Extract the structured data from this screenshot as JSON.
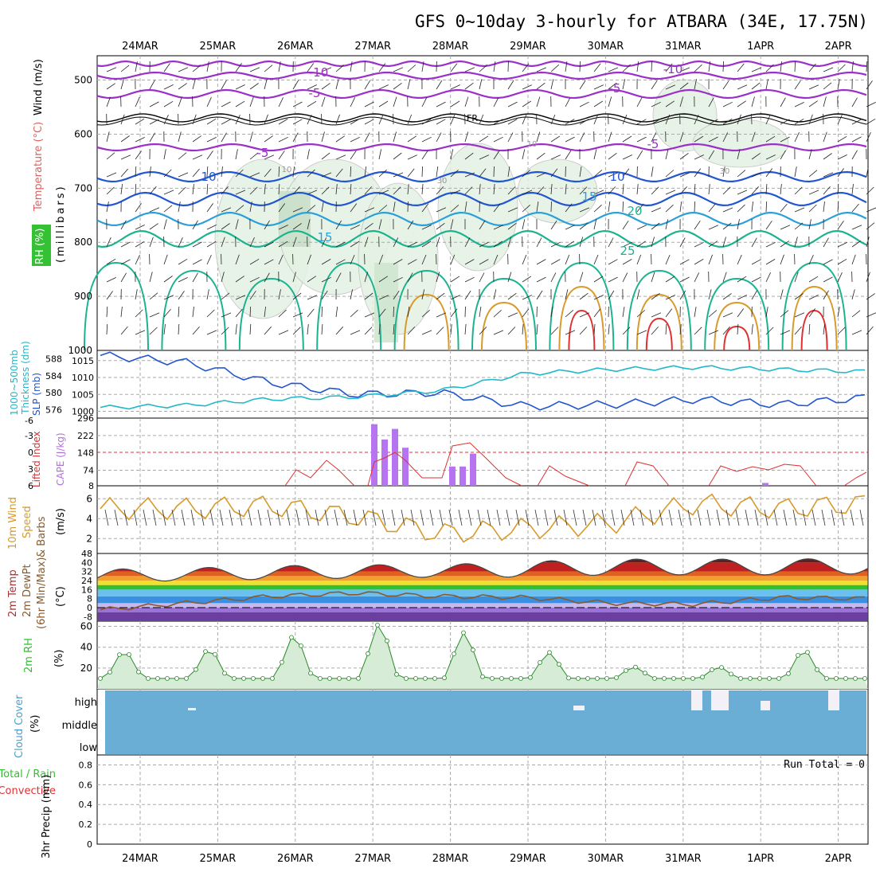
{
  "title": "GFS 0~10day 3-hourly for ATBARA (34E, 17.75N)",
  "date_labels": [
    "24MAR",
    "25MAR",
    "26MAR",
    "27MAR",
    "28MAR",
    "29MAR",
    "30MAR",
    "31MAR",
    "1APR",
    "2APR"
  ],
  "colors": {
    "purple": "#9b30c8",
    "blue": "#2255d0",
    "cyan": "#22b8c8",
    "sky": "#2a9fd8",
    "teal": "#1bb38f",
    "orange": "#d89a2a",
    "red": "#e03030",
    "green": "#30c030",
    "cloud": "#6aaed6",
    "grid": "#9a9a9a"
  },
  "panels": {
    "upper_air": {
      "axis_label_main": "Wind (m/s)",
      "axis_label_temp": "Temperature (°C)",
      "axis_label_rh": "RH (%)",
      "axis_label_unit": "(millibars)",
      "y_ticks": [
        "500",
        "600",
        "700",
        "800",
        "900",
        "1000"
      ],
      "isotherm_labels": [
        "-10",
        "-10",
        "-5",
        "-5",
        "-5",
        "-5",
        "10",
        "10",
        "15",
        "15",
        "20",
        "25"
      ],
      "freezing_label": "FR",
      "rh_labels": [
        "10",
        "30",
        "10",
        "30"
      ]
    },
    "slp": {
      "axis_label_left": "1000~500mb",
      "axis_label_left2": "Thickness (dm)",
      "axis_label_right": "SLP (mb)",
      "thick_ticks": [
        "588",
        "584",
        "580",
        "576"
      ],
      "slp_ticks": [
        "1015",
        "1010",
        "1005",
        "1000"
      ]
    },
    "cape": {
      "axis_label_li": "Lifted Index",
      "axis_label_cape": "CAPE (J/kg)",
      "li_ticks": [
        "-6",
        "-3",
        "0",
        "3",
        "6"
      ],
      "cape_ticks": [
        "296",
        "222",
        "148",
        "74",
        "8"
      ]
    },
    "wind10m": {
      "axis_label_1": "10m Wind",
      "axis_label_2": "Speed",
      "axis_label_3": "& Barbs",
      "axis_unit": "(m/s)",
      "y_ticks": [
        "6",
        "4",
        "2"
      ]
    },
    "temp2m": {
      "axis_label_1": "2m Temp",
      "axis_label_2": "2m DewPt",
      "axis_label_3": "(6hr Min/Max)",
      "axis_unit": "(°C)",
      "y_ticks": [
        "48",
        "40",
        "32",
        "24",
        "16",
        "8",
        "0",
        "-8"
      ]
    },
    "rh2m": {
      "axis_label": "2m RH",
      "axis_unit": "(%)",
      "y_ticks": [
        "60",
        "40",
        "20"
      ]
    },
    "cloud": {
      "axis_label": "Cloud Cover",
      "axis_unit": "(%)",
      "levels": [
        "high",
        "middle",
        "low"
      ]
    },
    "precip": {
      "axis_label_1": "Total / Rain",
      "axis_label_2": "Convective",
      "axis_label_3": "3hr Precip (mm)",
      "y_ticks": [
        "0.8",
        "0.6",
        "0.4",
        "0.2",
        "0"
      ],
      "run_total": "Run Total = 0"
    }
  },
  "chart_data": [
    {
      "type": "line",
      "title": "1000~500mb Thickness (dm) / SLP (mb)",
      "x": [
        "24MAR",
        "25MAR",
        "26MAR",
        "27MAR",
        "28MAR",
        "29MAR",
        "30MAR",
        "31MAR",
        "1APR",
        "2APR"
      ],
      "series": [
        {
          "name": "SLP (mb)",
          "values": [
            1016.5,
            1014.5,
            1008.5,
            1005.0,
            1005.5,
            1001.5,
            1002.0,
            1003.5,
            1002.0,
            1004.0
          ]
        },
        {
          "name": "1000~500mb Thickness (dm)",
          "values": [
            576.5,
            577.0,
            578.5,
            579.0,
            580.5,
            584.5,
            585.5,
            586.0,
            585.5,
            585.0
          ]
        }
      ]
    },
    {
      "type": "bar",
      "title": "CAPE (J/kg)",
      "categories": [
        "27MAR00",
        "27MAR03",
        "27MAR06",
        "27MAR09",
        "28MAR00",
        "28MAR03",
        "28MAR06",
        "1APR00",
        "1APR03"
      ],
      "values": [
        270,
        205,
        250,
        170,
        90,
        90,
        145,
        8,
        20
      ],
      "ylim": [
        8,
        296
      ]
    },
    {
      "type": "line",
      "title": "10m Wind Speed (m/s)",
      "x": [
        "24MAR",
        "25MAR",
        "26MAR",
        "27MAR",
        "28MAR",
        "29MAR",
        "30MAR",
        "31MAR",
        "1APR",
        "2APR"
      ],
      "values": [
        5.0,
        5.0,
        5.3,
        4.2,
        2.5,
        3.0,
        3.5,
        5.5,
        5.0,
        5.5
      ]
    },
    {
      "type": "line",
      "title": "2m Temp / 2m DewPt (°C)",
      "x": [
        "24MAR",
        "25MAR",
        "26MAR",
        "27MAR",
        "28MAR",
        "29MAR",
        "30MAR",
        "31MAR",
        "1APR",
        "2APR"
      ],
      "series": [
        {
          "name": "2m Temp max",
          "values": [
            34,
            35,
            37,
            38,
            38,
            41,
            43,
            43,
            43,
            44
          ]
        },
        {
          "name": "2m Temp min",
          "values": [
            22,
            24,
            25,
            26,
            27,
            27,
            29,
            29,
            29,
            30
          ]
        },
        {
          "name": "2m DewPt",
          "values": [
            -2,
            4,
            10,
            13,
            10,
            9,
            4,
            3,
            9,
            8
          ]
        }
      ],
      "ylim": [
        -8,
        48
      ]
    },
    {
      "type": "area",
      "title": "2m RH (%)",
      "x": [
        "24MAR",
        "25MAR",
        "26MAR",
        "27MAR",
        "28MAR",
        "29MAR",
        "30MAR",
        "31MAR",
        "1APR",
        "2APR"
      ],
      "values": [
        36,
        38,
        51,
        62,
        54,
        35,
        21,
        21,
        37,
        35
      ],
      "ylim": [
        0,
        65
      ]
    },
    {
      "type": "line",
      "title": "3hr Precip (mm)",
      "x": [
        "24MAR",
        "25MAR",
        "26MAR",
        "27MAR",
        "28MAR",
        "29MAR",
        "30MAR",
        "31MAR",
        "1APR",
        "2APR"
      ],
      "values": [
        0,
        0,
        0,
        0,
        0,
        0,
        0,
        0,
        0,
        0
      ],
      "ylim": [
        0,
        0.9
      ]
    }
  ]
}
